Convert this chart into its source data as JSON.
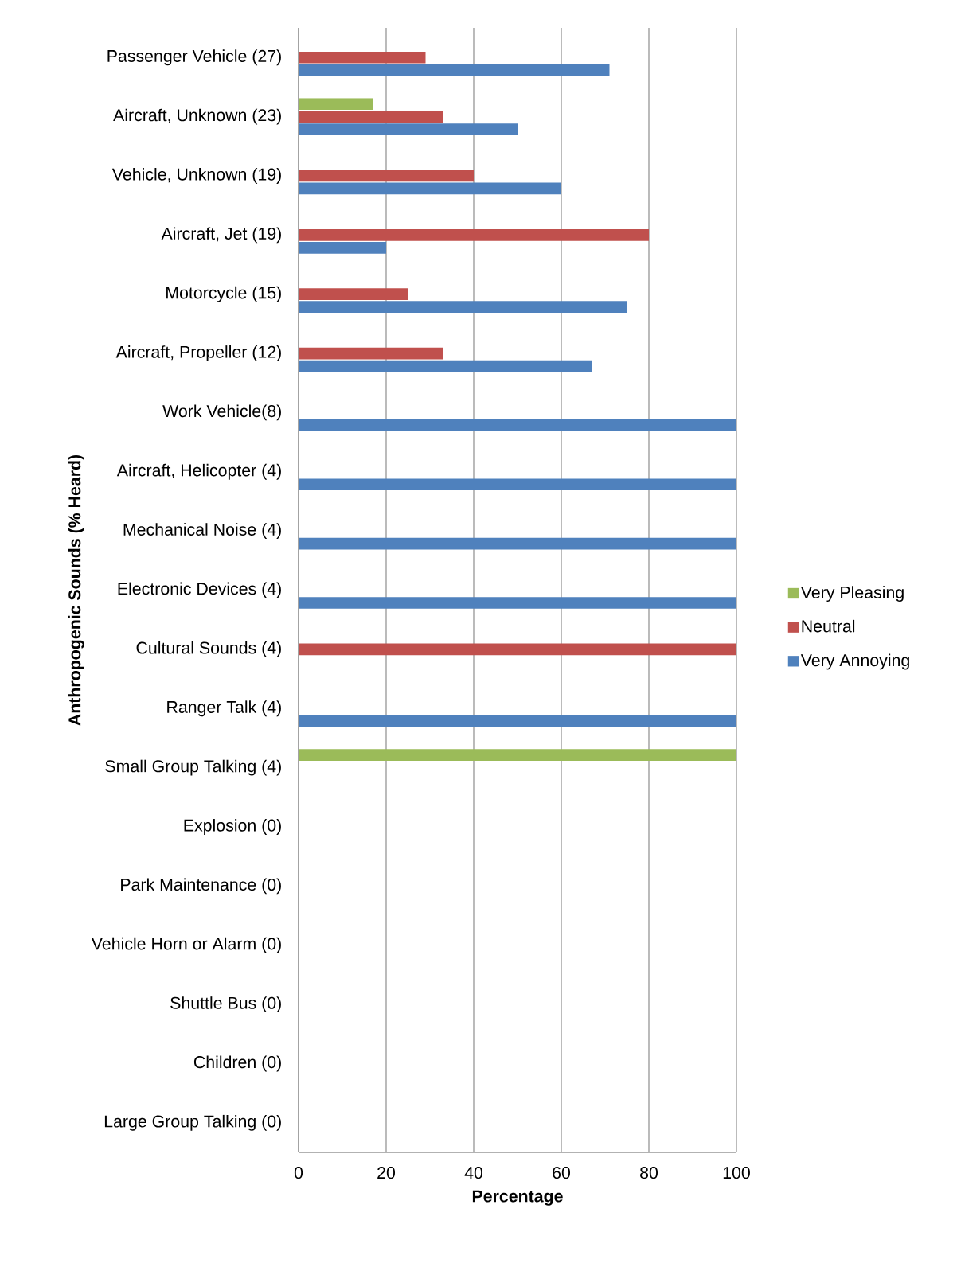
{
  "chart_data": {
    "type": "bar",
    "orientation": "horizontal",
    "ylabel": "Anthropogenic Sounds (% Heard)",
    "xlabel": "Percentage",
    "categories": [
      "Passenger Vehicle (27)",
      "Aircraft, Unknown (23)",
      "Vehicle, Unknown (19)",
      "Aircraft, Jet (19)",
      "Motorcycle (15)",
      "Aircraft, Propeller (12)",
      "Work Vehicle(8)",
      "Aircraft, Helicopter (4)",
      "Mechanical Noise (4)",
      "Electronic Devices (4)",
      "Cultural Sounds  (4)",
      "Ranger Talk (4)",
      "Small Group Talking (4)",
      "Explosion (0)",
      "Park Maintenance  (0)",
      "Vehicle Horn or Alarm (0)",
      "Shuttle Bus (0)",
      "Children (0)",
      "Large Group Talking (0)"
    ],
    "series": [
      {
        "name": "Very Pleasing",
        "color": "#9bbb59",
        "values": [
          null,
          17,
          null,
          null,
          null,
          null,
          null,
          null,
          null,
          null,
          null,
          null,
          100,
          null,
          null,
          null,
          null,
          null,
          null
        ]
      },
      {
        "name": "Neutral",
        "color": "#c0504d",
        "values": [
          29,
          33,
          40,
          80,
          25,
          33,
          null,
          null,
          null,
          null,
          100,
          null,
          null,
          null,
          null,
          null,
          null,
          null,
          null
        ]
      },
      {
        "name": "Very Annoying",
        "color": "#4f81bd",
        "values": [
          71,
          50,
          60,
          20,
          75,
          67,
          100,
          100,
          100,
          100,
          null,
          100,
          null,
          null,
          null,
          null,
          null,
          null,
          null
        ]
      }
    ],
    "xlim": [
      0,
      100
    ],
    "xticks": [
      0,
      20,
      40,
      60,
      80,
      100
    ],
    "grid": "x",
    "legend": "right"
  }
}
